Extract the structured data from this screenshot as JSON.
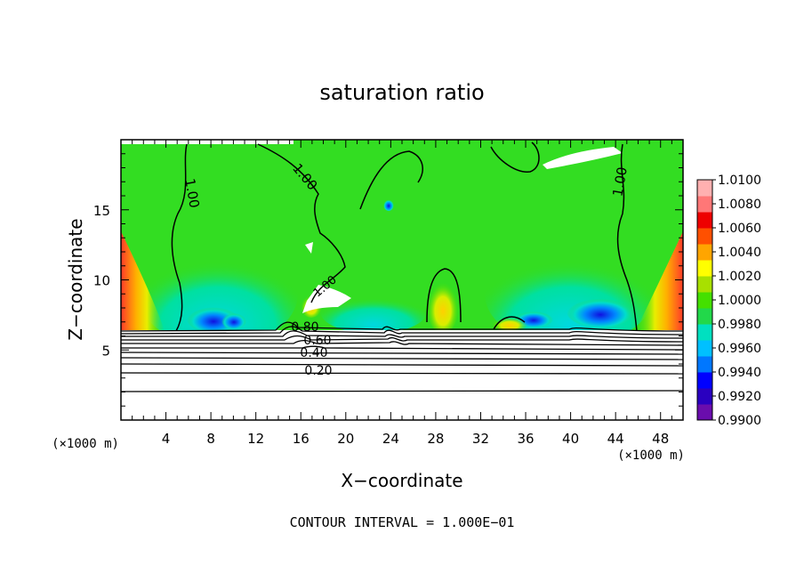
{
  "chart_data": {
    "type": "heatmap",
    "title": "saturation ratio",
    "xlabel": "X−coordinate",
    "ylabel": "Z−coordinate",
    "x_unit": "(×1000 m)",
    "y_unit": "(×1000 m)",
    "xlim": [
      0,
      50
    ],
    "ylim": [
      0,
      20
    ],
    "x_ticks": [
      4,
      8,
      12,
      16,
      20,
      24,
      28,
      32,
      36,
      40,
      44,
      48
    ],
    "y_ticks": [
      5,
      10,
      15
    ],
    "colorbar": {
      "labels": [
        "1.0100",
        "1.0080",
        "1.0060",
        "1.0040",
        "1.0020",
        "1.0000",
        "0.9980",
        "0.9960",
        "0.9940",
        "0.9920",
        "0.9900"
      ],
      "min": 0.99,
      "max": 1.01,
      "colors": [
        "#6a0dad",
        "#2a00c0",
        "#0000ff",
        "#0077ff",
        "#00c0ff",
        "#00e0c0",
        "#22d84a",
        "#44e000",
        "#a8e000",
        "#ffff00",
        "#ffa500",
        "#ff5000",
        "#ee0000",
        "#ff7777",
        "#ffb0b0"
      ]
    },
    "contour_labels": [
      "1.00",
      "1.00",
      "1.00",
      "1.00",
      "0.80",
      "0.60",
      "0.40",
      "0.20"
    ],
    "footnote": "CONTOUR INTERVAL = 1.000E−01"
  },
  "colors": {
    "saturated_green": "#33dd22",
    "axis": "#000000"
  }
}
